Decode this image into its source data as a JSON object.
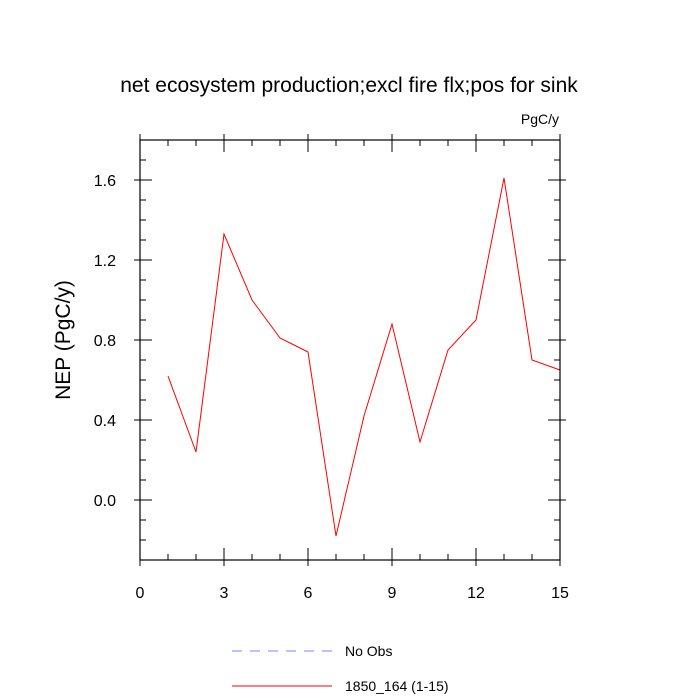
{
  "chart_data": {
    "type": "line",
    "title": "net ecosystem production;excl fire flx;pos for sink",
    "units_label": "PgC/y",
    "xlabel": "",
    "ylabel": "NEP  (PgC/y)",
    "xlim": [
      0,
      15
    ],
    "ylim": [
      -0.3,
      1.8
    ],
    "x_ticks": [
      0,
      3,
      6,
      9,
      12,
      15
    ],
    "x_tick_labels": [
      "0",
      "3",
      "6",
      "9",
      "12",
      "15"
    ],
    "x_minor_step": 1,
    "y_ticks": [
      0.0,
      0.4,
      0.8,
      1.2,
      1.6
    ],
    "y_tick_labels": [
      "0.0",
      "0.4",
      "0.8",
      "1.2",
      "1.6"
    ],
    "y_minor_step": 0.1,
    "grid": false,
    "legend_position": "bottom",
    "series": [
      {
        "name": "No Obs",
        "color": "#8080ff",
        "dash": "dashed",
        "x": [],
        "y": []
      },
      {
        "name": "1850_164 (1-15)",
        "color": "#ff0000",
        "dash": "solid",
        "x": [
          1,
          2,
          3,
          4,
          5,
          6,
          7,
          8,
          9,
          10,
          11,
          12,
          13,
          14,
          15
        ],
        "y": [
          0.62,
          0.24,
          1.33,
          1.0,
          0.81,
          0.74,
          -0.18,
          0.42,
          0.88,
          0.29,
          0.75,
          0.9,
          1.61,
          0.7,
          0.65
        ]
      }
    ]
  }
}
